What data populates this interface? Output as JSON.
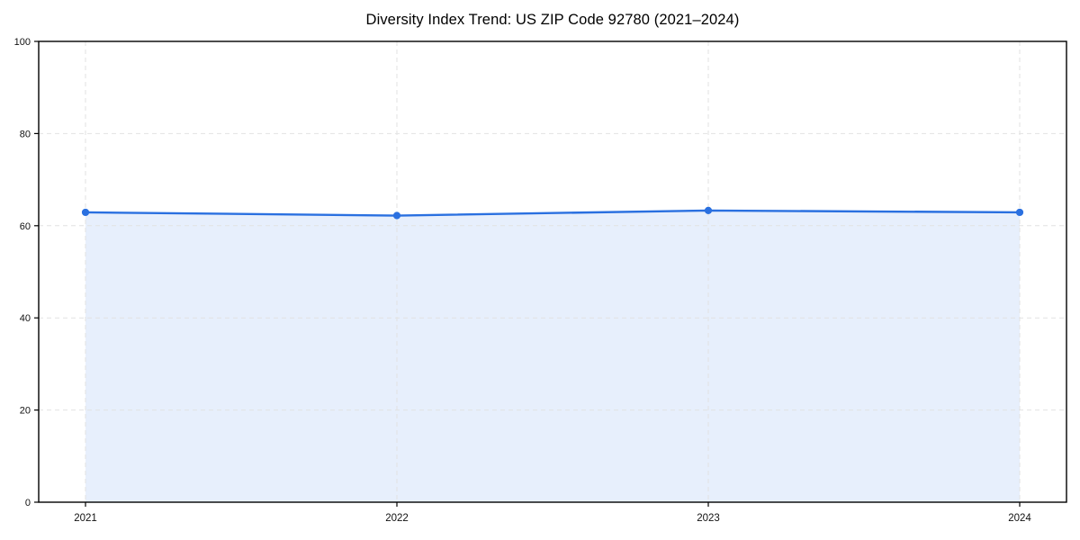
{
  "chart_data": {
    "type": "area",
    "title": "Diversity Index Trend: US ZIP Code 92780 (2021–2024)",
    "categories": [
      "2021",
      "2022",
      "2023",
      "2024"
    ],
    "series": [
      {
        "name": "Diversity Index",
        "values": [
          62.9,
          62.2,
          63.3,
          62.9
        ]
      }
    ],
    "xlabel": "",
    "ylabel": "",
    "ylim": [
      0,
      100
    ],
    "yticks": [
      0,
      20,
      40,
      60,
      80,
      100
    ],
    "grid": true,
    "legend": "none",
    "colors": {
      "line": "#2a70e0",
      "marker": "#2a70e0",
      "area_fill": "#e7effc",
      "grid": "#e2e2e2",
      "spine": "#000000",
      "tick_label": "#111111",
      "background": "#ffffff"
    }
  }
}
